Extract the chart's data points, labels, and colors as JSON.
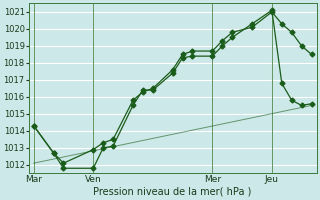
{
  "background_color": "#cde8e8",
  "grid_color": "#ffffff",
  "line_color": "#1a5c1a",
  "x_tick_labels": [
    "Mar",
    "Ven",
    "Mer",
    "Jeu"
  ],
  "x_tick_positions": [
    0,
    6,
    18,
    24
  ],
  "xlabel": "Pression niveau de la mer( hPa )",
  "ylim": [
    1011.5,
    1021.5
  ],
  "xlim": [
    -0.5,
    28.5
  ],
  "yticks": [
    1012,
    1013,
    1014,
    1015,
    1016,
    1017,
    1018,
    1019,
    1020,
    1021
  ],
  "series1_x": [
    0,
    2,
    3,
    6,
    7,
    8,
    10,
    11,
    12,
    14,
    15,
    16,
    18,
    19,
    20,
    22,
    24,
    25,
    26,
    27,
    28
  ],
  "series1_y": [
    1014.3,
    1012.7,
    1012.1,
    1012.9,
    1013.3,
    1013.5,
    1015.8,
    1016.3,
    1016.5,
    1017.6,
    1018.5,
    1018.7,
    1018.7,
    1019.3,
    1019.8,
    1020.1,
    1021.0,
    1020.3,
    1019.8,
    1019.0,
    1018.5
  ],
  "series2_x": [
    0,
    2,
    3,
    6,
    7,
    8,
    10,
    11,
    12,
    14,
    15,
    16,
    18,
    19,
    20,
    22,
    24,
    25,
    26,
    27,
    28
  ],
  "series2_y": [
    1014.3,
    1012.7,
    1011.8,
    1011.8,
    1013.0,
    1013.1,
    1015.5,
    1016.4,
    1016.4,
    1017.4,
    1018.3,
    1018.4,
    1018.4,
    1019.0,
    1019.5,
    1020.3,
    1021.1,
    1016.8,
    1015.8,
    1015.5,
    1015.6
  ],
  "series3_x": [
    0,
    28
  ],
  "series3_y": [
    1012.1,
    1015.5
  ],
  "vline_x": [
    0,
    6,
    18,
    24
  ],
  "marker": "D",
  "marker_size": 2.5,
  "lw": 0.9,
  "ytick_fontsize": 6,
  "xtick_fontsize": 6.5,
  "xlabel_fontsize": 7
}
